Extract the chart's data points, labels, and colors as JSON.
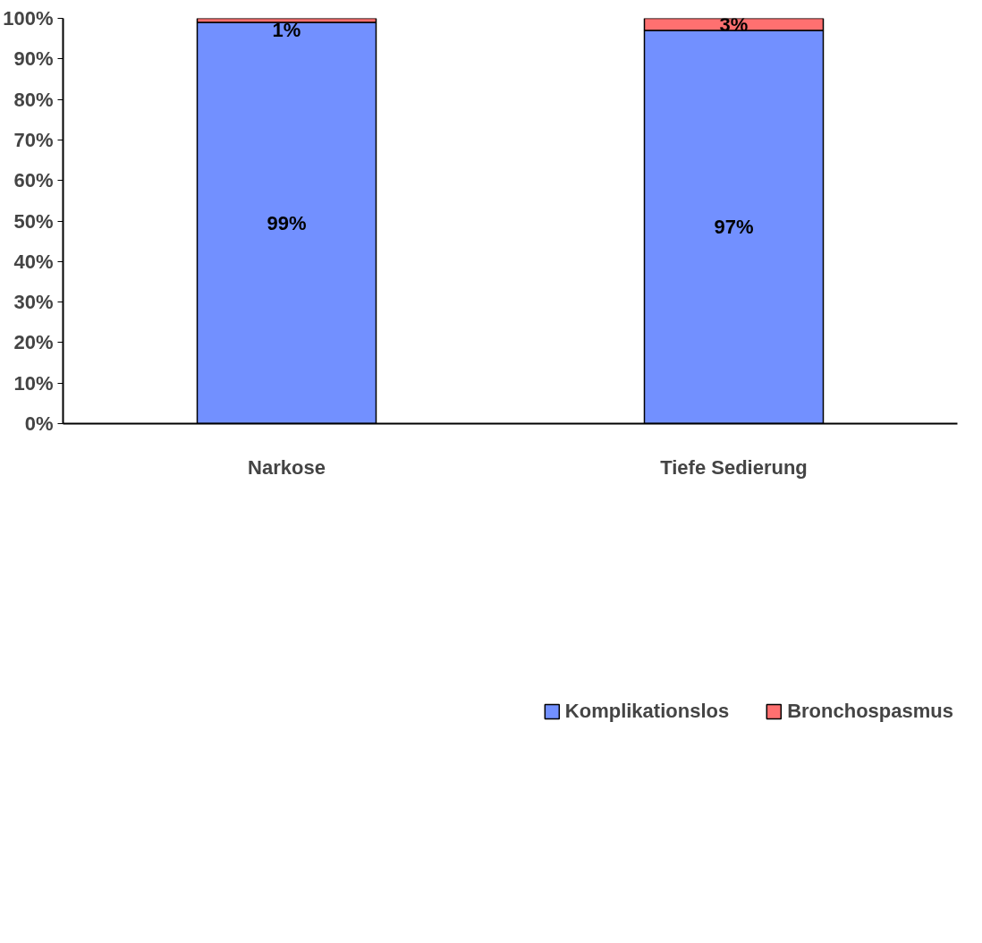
{
  "chart_data": {
    "type": "bar",
    "stacked": true,
    "categories": [
      "Narkose",
      "Tiefe Sedierung"
    ],
    "series": [
      {
        "name": "Komplikationslos",
        "color": "#7290ff",
        "values": [
          99,
          97
        ],
        "value_labels": [
          "99%",
          "97%"
        ]
      },
      {
        "name": "Bronchospasmus",
        "color": "#ff7070",
        "values": [
          1,
          3
        ],
        "value_labels": [
          "1%",
          "3%"
        ]
      }
    ],
    "ylim": [
      0,
      100
    ],
    "yticks": [
      {
        "value": 0,
        "label": "0%"
      },
      {
        "value": 10,
        "label": "10%"
      },
      {
        "value": 20,
        "label": "20%"
      },
      {
        "value": 30,
        "label": "30%"
      },
      {
        "value": 40,
        "label": "40%"
      },
      {
        "value": 50,
        "label": "50%"
      },
      {
        "value": 60,
        "label": "60%"
      },
      {
        "value": 70,
        "label": "70%"
      },
      {
        "value": 80,
        "label": "80%"
      },
      {
        "value": 90,
        "label": "90%"
      },
      {
        "value": 100,
        "label": "100%"
      }
    ],
    "grid": false,
    "legend": "bottom"
  }
}
